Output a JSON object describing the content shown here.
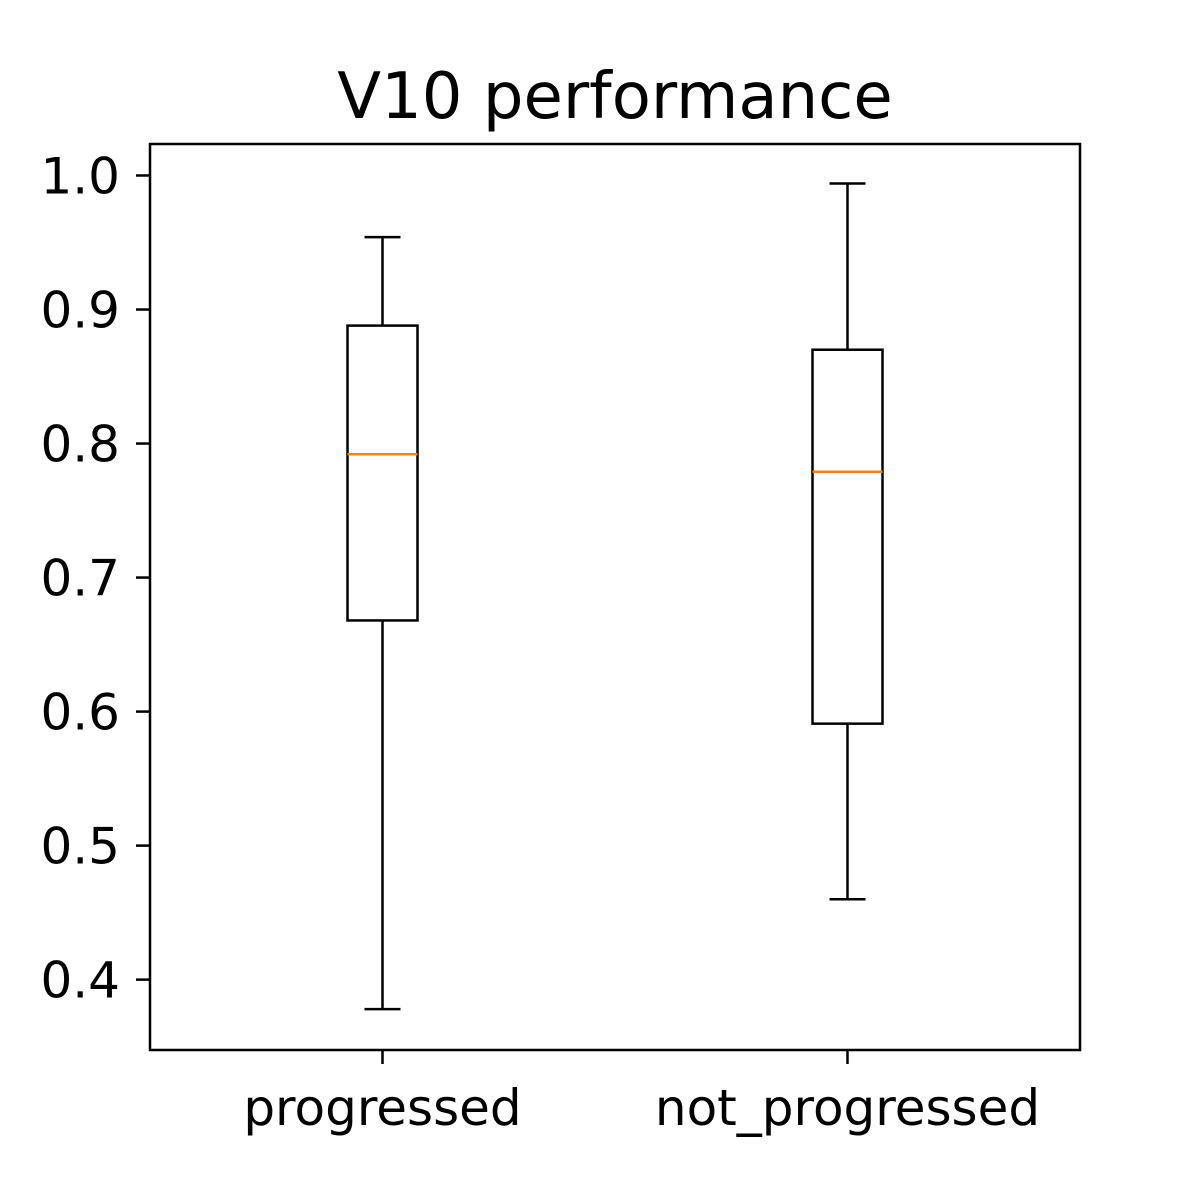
{
  "chart_data": {
    "type": "box",
    "title": "V10 performance",
    "xlabel": "",
    "ylabel": "",
    "categories": [
      "progressed",
      "not_progressed"
    ],
    "boxes": [
      {
        "label": "progressed",
        "whisker_low": 0.378,
        "q1": 0.668,
        "median": 0.792,
        "q3": 0.888,
        "whisker_high": 0.954
      },
      {
        "label": "not_progressed",
        "whisker_low": 0.46,
        "q1": 0.591,
        "median": 0.779,
        "q3": 0.87,
        "whisker_high": 0.994
      }
    ],
    "ylim": [
      0.3475,
      1.0235
    ],
    "yticks": [
      1.0,
      0.9,
      0.8,
      0.7,
      0.6,
      0.5,
      0.4
    ],
    "ytick_labels": [
      "1.0",
      "0.9",
      "0.8",
      "0.7",
      "0.6",
      "0.5",
      "0.4"
    ],
    "grid": false,
    "colors": {
      "box": "#000000",
      "median": "#ff7f0e"
    }
  }
}
